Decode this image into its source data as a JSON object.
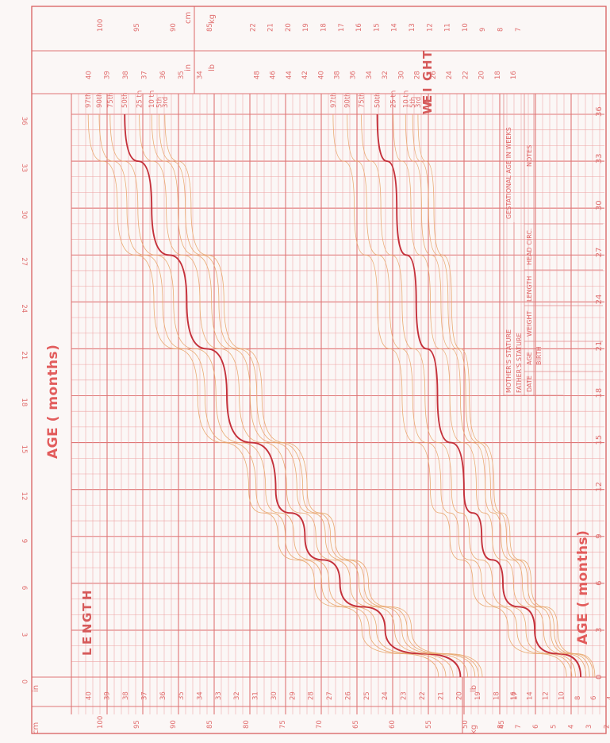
{
  "chart_data": {
    "type": "line",
    "orientation": "rotated-90",
    "axis_title_top": "AGE ( months)",
    "axis_title_bottom": "AGE ( months)",
    "x_ticks": [
      "0",
      "3",
      "6",
      "9",
      "12",
      "15",
      "18",
      "21",
      "24",
      "27",
      "30",
      "33",
      "36"
    ],
    "bottom_x_ticks": [
      "0",
      "3",
      "6",
      "9",
      "12",
      "15",
      "18",
      "21",
      "24",
      "27",
      "30",
      "33",
      "36"
    ],
    "xlim": [
      0,
      36
    ],
    "length_ticks_cm": [
      "100",
      "95",
      "90",
      "85",
      "80",
      "75",
      "70",
      "65",
      "60",
      "55",
      "50",
      "45"
    ],
    "length_ticks_in": [
      "40",
      "39",
      "38",
      "37",
      "36",
      "35",
      "34",
      "33",
      "32",
      "31",
      "30",
      "29",
      "28",
      "27",
      "26",
      "25",
      "24",
      "23",
      "22",
      "21",
      "20",
      "19",
      "18",
      "17"
    ],
    "top_length_ticks_cm": [
      "100",
      "95",
      "90",
      "85"
    ],
    "top_length_ticks_in": [
      "40",
      "39",
      "38",
      "37",
      "36",
      "35",
      "34"
    ],
    "weight_ticks_kg": [
      "22",
      "21",
      "20",
      "19",
      "18",
      "17",
      "16",
      "15",
      "14",
      "13",
      "12",
      "11",
      "10",
      "9",
      "8",
      "7"
    ],
    "weight_ticks_lb": [
      "48",
      "46",
      "44",
      "42",
      "40",
      "38",
      "36",
      "34",
      "32",
      "30",
      "28",
      "26",
      "24",
      "22",
      "20",
      "18",
      "16"
    ],
    "bottom_weight_ticks_kg": [
      "8",
      "7",
      "6",
      "5",
      "4",
      "3",
      "2"
    ],
    "bottom_weight_ticks_lb": [
      "16",
      "14",
      "12",
      "10",
      "8",
      "6",
      "4"
    ],
    "unit_labels": {
      "cm": "cm",
      "in": "in",
      "kg": "kg",
      "lb": "lb"
    },
    "length_label_letters": [
      "L",
      "E",
      "N",
      "G",
      "T",
      "H"
    ],
    "weight_label_letters": [
      "W",
      "E",
      "I",
      "G",
      "H",
      "T"
    ],
    "percentile_labels": [
      "97th",
      "90th",
      "75th",
      "50th",
      "25 th",
      "10 th",
      "5th",
      "3rd"
    ],
    "weight_percentile_labels": [
      "97th",
      "90th",
      "75th",
      "50th",
      "25 th",
      "10 th",
      "5th",
      "3rd"
    ],
    "length_percentiles": [
      {
        "name": "97th",
        "x": [
          0,
          3,
          6,
          9,
          12,
          18,
          24,
          30,
          36
        ],
        "y": [
          53.5,
          64.0,
          70.5,
          75.5,
          79.5,
          86.5,
          92.5,
          97.5,
          101.5
        ]
      },
      {
        "name": "90th",
        "x": [
          0,
          3,
          6,
          9,
          12,
          18,
          24,
          30,
          36
        ],
        "y": [
          52.5,
          63.0,
          69.5,
          74.5,
          78.5,
          85.5,
          91.3,
          96.2,
          100.0
        ]
      },
      {
        "name": "75th",
        "x": [
          0,
          3,
          6,
          9,
          12,
          18,
          24,
          30,
          36
        ],
        "y": [
          51.5,
          62.0,
          68.5,
          73.3,
          77.2,
          84.0,
          89.8,
          94.7,
          98.5
        ]
      },
      {
        "name": "50th",
        "x": [
          0,
          3,
          6,
          9,
          12,
          18,
          24,
          30,
          36
        ],
        "y": [
          50.5,
          60.8,
          67.0,
          71.8,
          75.8,
          82.5,
          88.0,
          92.8,
          96.5
        ]
      },
      {
        "name": "25 th",
        "x": [
          0,
          3,
          6,
          9,
          12,
          18,
          24,
          30,
          36
        ],
        "y": [
          49.5,
          59.5,
          65.6,
          70.3,
          74.3,
          80.8,
          86.2,
          90.8,
          94.5
        ]
      },
      {
        "name": "10 th",
        "x": [
          0,
          3,
          6,
          9,
          12,
          18,
          24,
          30,
          36
        ],
        "y": [
          48.5,
          58.5,
          64.4,
          69.0,
          72.9,
          79.3,
          84.6,
          89.2,
          92.8
        ]
      },
      {
        "name": "5th",
        "x": [
          0,
          3,
          6,
          9,
          12,
          18,
          24,
          30,
          36
        ],
        "y": [
          48.0,
          57.8,
          63.7,
          68.3,
          72.1,
          78.4,
          83.6,
          88.2,
          91.8
        ]
      },
      {
        "name": "3rd",
        "x": [
          0,
          3,
          6,
          9,
          12,
          18,
          24,
          30,
          36
        ],
        "y": [
          47.5,
          57.2,
          63.1,
          67.7,
          71.5,
          77.7,
          82.9,
          87.4,
          91.0
        ]
      }
    ],
    "weight_percentiles": [
      {
        "name": "97th",
        "x": [
          0,
          3,
          6,
          9,
          12,
          18,
          24,
          30,
          36
        ],
        "y": [
          4.2,
          7.5,
          9.5,
          10.8,
          11.9,
          13.5,
          14.9,
          16.2,
          17.4
        ]
      },
      {
        "name": "90th",
        "x": [
          0,
          3,
          6,
          9,
          12,
          18,
          24,
          30,
          36
        ],
        "y": [
          3.9,
          7.0,
          9.0,
          10.3,
          11.3,
          12.9,
          14.2,
          15.5,
          16.6
        ]
      },
      {
        "name": "75th",
        "x": [
          0,
          3,
          6,
          9,
          12,
          18,
          24,
          30,
          36
        ],
        "y": [
          3.7,
          6.5,
          8.4,
          9.7,
          10.7,
          12.2,
          13.5,
          14.7,
          15.8
        ]
      },
      {
        "name": "50th",
        "x": [
          0,
          3,
          6,
          9,
          12,
          18,
          24,
          30,
          36
        ],
        "y": [
          3.4,
          6.0,
          7.8,
          9.0,
          10.0,
          11.5,
          12.7,
          13.8,
          14.9
        ]
      },
      {
        "name": "25 th",
        "x": [
          0,
          3,
          6,
          9,
          12,
          18,
          24,
          30,
          36
        ],
        "y": [
          3.1,
          5.5,
          7.2,
          8.4,
          9.3,
          10.8,
          11.9,
          13.0,
          14.0
        ]
      },
      {
        "name": "10 th",
        "x": [
          0,
          3,
          6,
          9,
          12,
          18,
          24,
          30,
          36
        ],
        "y": [
          2.9,
          5.1,
          6.7,
          7.9,
          8.8,
          10.2,
          11.3,
          12.4,
          13.3
        ]
      },
      {
        "name": "5th",
        "x": [
          0,
          3,
          6,
          9,
          12,
          18,
          24,
          30,
          36
        ],
        "y": [
          2.7,
          4.9,
          6.4,
          7.6,
          8.5,
          9.9,
          10.9,
          12.0,
          12.9
        ]
      },
      {
        "name": "3rd",
        "x": [
          0,
          3,
          6,
          9,
          12,
          18,
          24,
          30,
          36
        ],
        "y": [
          2.6,
          4.7,
          6.2,
          7.4,
          8.3,
          9.7,
          10.7,
          11.7,
          12.6
        ]
      }
    ],
    "colors": {
      "percentile": "#e8a76b",
      "median": "#c4303a",
      "grid": "#eda3a3",
      "text": "#e06d6d"
    }
  },
  "record_table": {
    "mothers_stature": "MOTHER'S STATURE",
    "fathers_stature": "FATHER'S STATURE",
    "gestational_age": "GESTATIONAL AGE IN WEEKS",
    "columns": [
      "DATE",
      "AGE",
      "WEIGHT",
      "LENGTH",
      "HEAD CIRC.",
      "NOTES"
    ],
    "first_row": "BIRTH"
  }
}
